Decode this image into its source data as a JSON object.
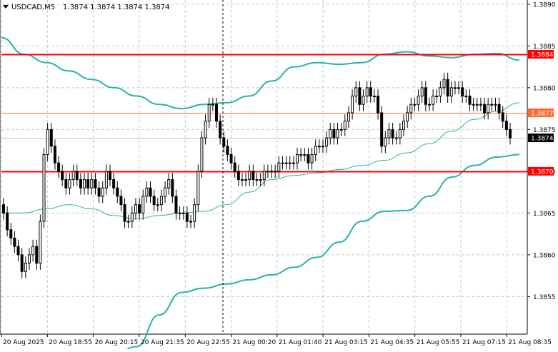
{
  "header": {
    "symbol_label": "USDCAD,M5",
    "ohlc_label": "1.3874 1.3874 1.3874 1.3874"
  },
  "colors": {
    "background": "#ffffff",
    "grid": "#c8c8c8",
    "candle": "#000000",
    "band": "#26b3a9",
    "sr_line": "#ff0000",
    "current_line": "#ff6a33",
    "price_tag_red": "#ff0000",
    "price_tag_orange": "#ff6a33",
    "price_tag_dark": "#000000",
    "crosshair": "#000000"
  },
  "chart_data": {
    "type": "candlestick",
    "symbol": "USDCAD",
    "timeframe": "M5",
    "ylim": [
      1.38505,
      1.38905
    ],
    "y_ticks": [
      "1.3890",
      "1.3885",
      "1.3880",
      "1.3875",
      "1.3870",
      "1.3865",
      "1.3860",
      "1.3855"
    ],
    "x_ticks": [
      "20 Aug 2025",
      "20 Aug 18:55",
      "20 Aug 20:15",
      "20 Aug 21:35",
      "20 Aug 22:55",
      "21 Aug 00:20",
      "21 Aug 01:40",
      "21 Aug 03:15",
      "21 Aug 04:35",
      "21 Aug 05:55",
      "21 Aug 07:15",
      "21 Aug 08:35"
    ],
    "horizontal_lines": [
      {
        "price": 1.3884,
        "label": "1.3884",
        "style": "red"
      },
      {
        "price": 1.3877,
        "label": "1.3877",
        "style": "orange"
      },
      {
        "price": 1.387,
        "label": "1.3870",
        "style": "red"
      }
    ],
    "current_price": {
      "price": 1.3874,
      "label": "1.3874"
    },
    "close": [
      1.3865,
      1.3863,
      1.3862,
      1.3861,
      1.386,
      1.3858,
      1.3859,
      1.386,
      1.3861,
      1.3859,
      1.3864,
      1.3872,
      1.3875,
      1.3873,
      1.3871,
      1.387,
      1.3869,
      1.3868,
      1.3869,
      1.387,
      1.3869,
      1.3868,
      1.3869,
      1.3868,
      1.3869,
      1.3868,
      1.3867,
      1.3868,
      1.387,
      1.3869,
      1.3868,
      1.3867,
      1.3866,
      1.3864,
      1.3864,
      1.3865,
      1.3866,
      1.3865,
      1.3867,
      1.3868,
      1.3867,
      1.3866,
      1.3866,
      1.3867,
      1.3868,
      1.3869,
      1.3867,
      1.3865,
      1.3865,
      1.3865,
      1.3864,
      1.3864,
      1.3866,
      1.387,
      1.3874,
      1.3876,
      1.3878,
      1.3878,
      1.3876,
      1.3874,
      1.3873,
      1.3872,
      1.3871,
      1.387,
      1.3869,
      1.3869,
      1.3869,
      1.387,
      1.3869,
      1.3869,
      1.3869,
      1.387,
      1.387,
      1.387,
      1.387,
      1.3871,
      1.3871,
      1.3871,
      1.3871,
      1.3871,
      1.3872,
      1.3872,
      1.3872,
      1.3871,
      1.3872,
      1.3873,
      1.3873,
      1.3873,
      1.3874,
      1.3875,
      1.3874,
      1.3875,
      1.3875,
      1.3876,
      1.3877,
      1.3879,
      1.388,
      1.3878,
      1.3879,
      1.388,
      1.3879,
      1.3879,
      1.3877,
      1.3873,
      1.3874,
      1.3875,
      1.3874,
      1.3874,
      1.3875,
      1.3876,
      1.3877,
      1.3878,
      1.3878,
      1.3879,
      1.388,
      1.3878,
      1.3878,
      1.3879,
      1.3879,
      1.388,
      1.3881,
      1.3879,
      1.388,
      1.388,
      1.388,
      1.3879,
      1.3879,
      1.3878,
      1.3878,
      1.3878,
      1.3878,
      1.3877,
      1.3878,
      1.3878,
      1.3878,
      1.3877,
      1.3876,
      1.3875,
      1.3874
    ],
    "bands": {
      "upper": [
        1.3886,
        1.3884,
        1.3883,
        1.3882,
        1.3881,
        1.388,
        1.3879,
        1.3878,
        1.38775,
        1.3878,
        1.38782,
        1.3879,
        1.38808,
        1.38825,
        1.3883,
        1.38828,
        1.3883,
        1.3884,
        1.38843,
        1.38838,
        1.38836,
        1.3884,
        1.38841,
        1.38833
      ],
      "middle": [
        1.3865,
        1.3865,
        1.38655,
        1.3866,
        1.38655,
        1.38647,
        1.38643,
        1.38647,
        1.3865,
        1.38652,
        1.3866,
        1.38675,
        1.3869,
        1.38695,
        1.38698,
        1.38702,
        1.38707,
        1.38713,
        1.38722,
        1.38733,
        1.38748,
        1.38762,
        1.38772,
        1.38782
      ],
      "lower": [
        1.3848,
        1.3848,
        1.3848,
        1.3848,
        1.3848,
        1.3848,
        1.3849,
        1.38528,
        1.38555,
        1.3856,
        1.38565,
        1.3857,
        1.38576,
        1.38585,
        1.38597,
        1.38615,
        1.3864,
        1.38652,
        1.38653,
        1.3867,
        1.38693,
        1.38707,
        1.38717,
        1.3872
      ]
    }
  }
}
